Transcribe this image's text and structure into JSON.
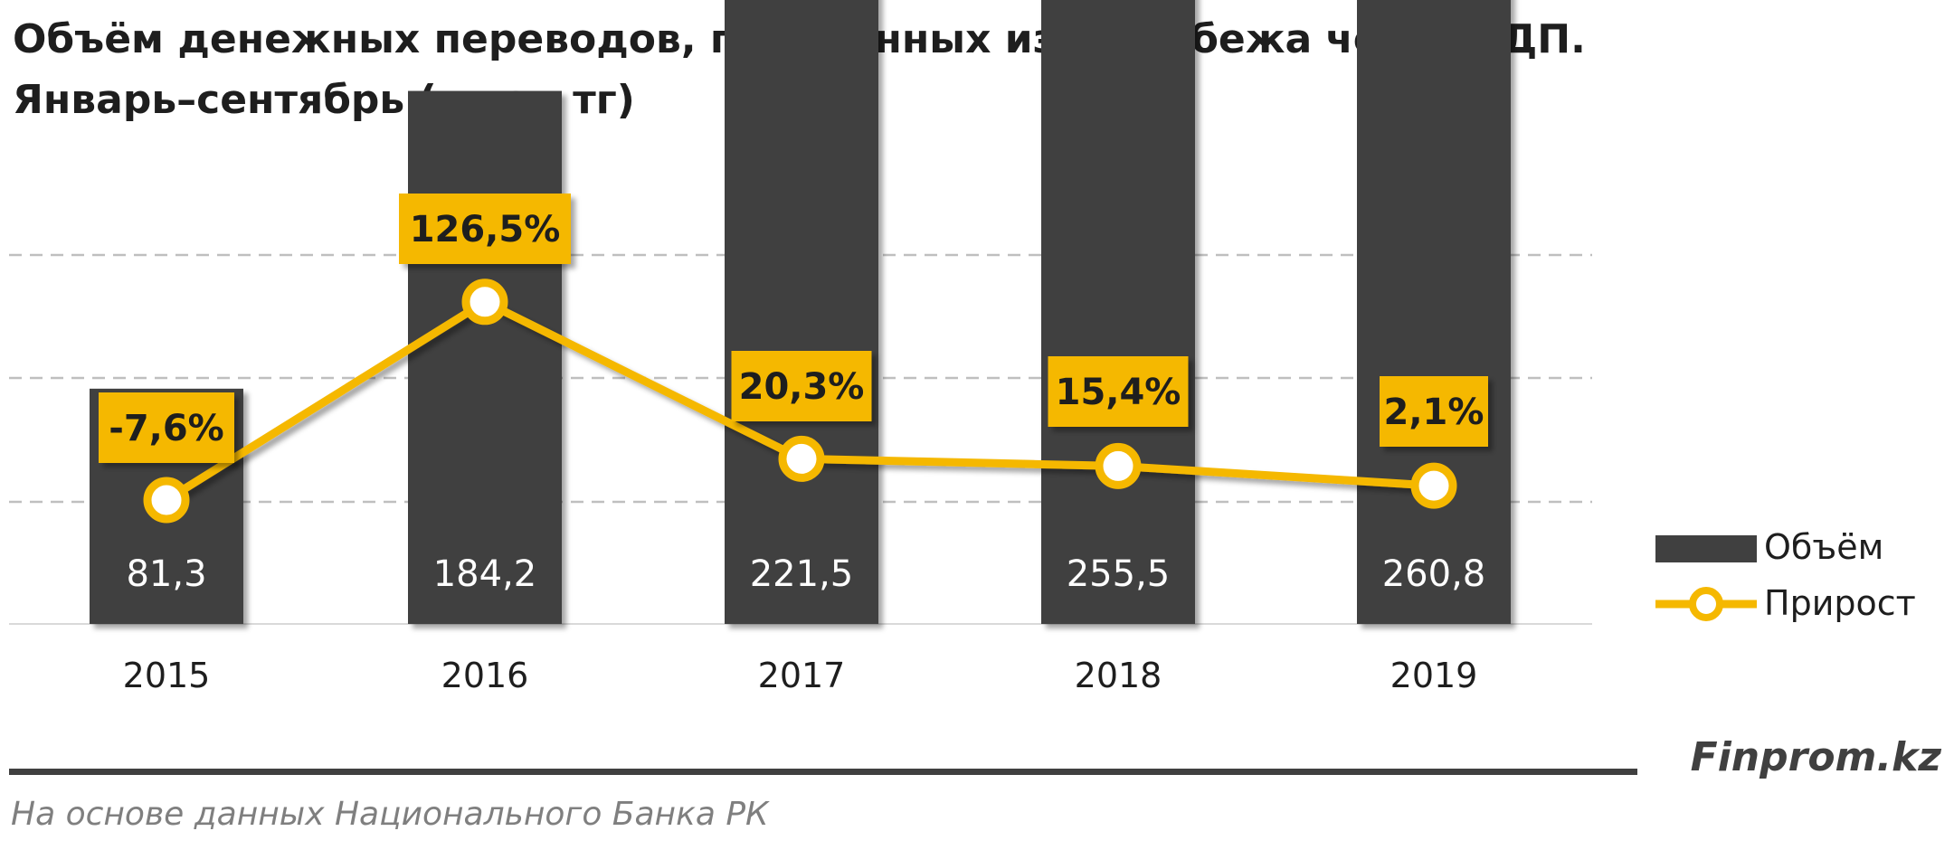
{
  "title_lines": [
    "Объём денежных переводов, полученных из-за рубежа через СДП.",
    "Январь–сентябрь (млрд тг)"
  ],
  "brand": "Finprom.kz",
  "source": "На основе данных  Национального  Банка РК",
  "colors": {
    "bar": "#404040",
    "line": "#f5b800",
    "grid": "#bfbfbf",
    "label_bg": "#f5b800"
  },
  "chart_data": {
    "type": "bar",
    "categories": [
      "2015",
      "2016",
      "2017",
      "2018",
      "2019"
    ],
    "series": [
      {
        "name": "Объём",
        "type": "bar",
        "values": [
          81.3,
          184.2,
          221.5,
          255.5,
          260.8
        ],
        "labels": [
          "81,3",
          "184,2",
          "221,5",
          "255,5",
          "260,8"
        ]
      },
      {
        "name": "Прирост",
        "type": "line",
        "values": [
          -7.6,
          126.5,
          20.3,
          15.4,
          2.1
        ],
        "labels": [
          "-7,6%",
          "126,5%",
          "20,3%",
          "15,4%",
          "2,1%"
        ]
      }
    ],
    "ylim_bars": [
      0,
      300
    ],
    "ylim_line": [
      -40,
      160
    ],
    "grid": true,
    "legend_position": "right"
  }
}
